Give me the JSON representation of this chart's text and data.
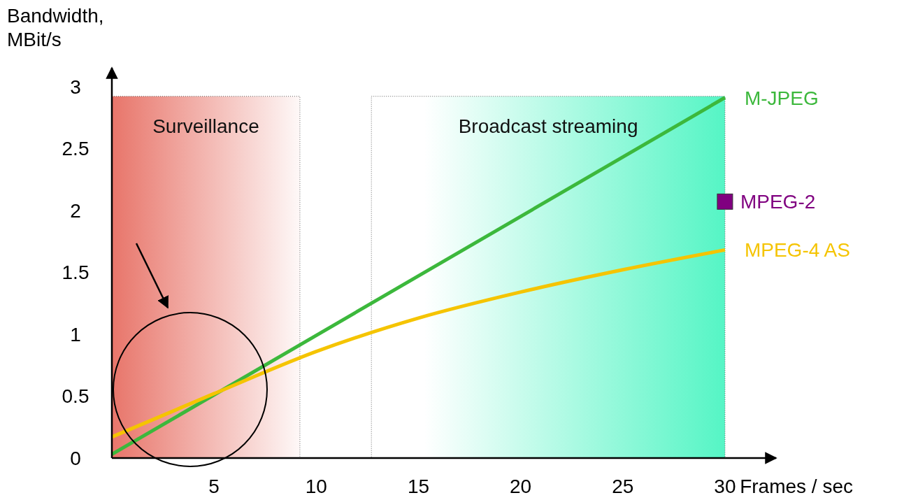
{
  "chart_data": {
    "type": "line",
    "xlabel": "Frames / sec",
    "ylabel": "Bandwidth, MBit/s",
    "xlim": [
      0,
      32.5
    ],
    "ylim": [
      0,
      3.15
    ],
    "xticks": [
      5,
      10,
      15,
      20,
      25,
      30
    ],
    "yticks": [
      0,
      0.5,
      1,
      1.5,
      2,
      2.5,
      3
    ],
    "grid": false,
    "legend": false,
    "marker": "none",
    "series": [
      {
        "name": "M-JPEG",
        "color": "#3cb83c",
        "x": [
          0,
          30
        ],
        "values": [
          0.03,
          2.91
        ]
      },
      {
        "name": "MPEG-2",
        "type": "scatter",
        "marker": "square",
        "color": "#800080",
        "x": [
          30
        ],
        "values": [
          2.07
        ]
      },
      {
        "name": "MPEG-4 AS",
        "color": "#f5c400",
        "x": [
          0,
          5,
          10,
          15,
          20,
          25,
          30
        ],
        "values": [
          0.17,
          0.52,
          0.86,
          1.13,
          1.34,
          1.52,
          1.68
        ]
      }
    ],
    "bands": [
      {
        "axis": "x",
        "from": 0,
        "to": 9.2,
        "label": "Surveillance",
        "color": "#e8756a"
      },
      {
        "axis": "x",
        "from": 12.7,
        "to": 30,
        "label": "Broadcast streaming",
        "color": "#55f5c5"
      }
    ]
  }
}
